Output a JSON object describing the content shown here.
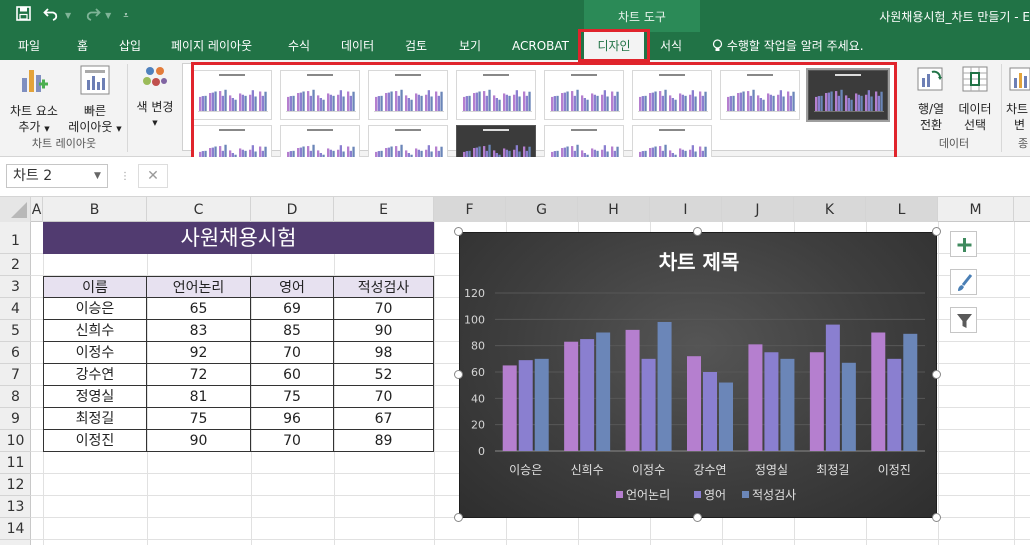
{
  "titlebar": {
    "save_icon": "save-icon",
    "undo_icon": "undo-icon",
    "redo_icon": "redo-icon",
    "customize_icon": "customize-qat-icon",
    "context_title": "차트 도구",
    "window_title": "사원채용시험_차트 만들기 - E"
  },
  "tabs": [
    {
      "label": "파일"
    },
    {
      "label": "홈"
    },
    {
      "label": "삽입"
    },
    {
      "label": "페이지 레이아웃"
    },
    {
      "label": "수식"
    },
    {
      "label": "데이터"
    },
    {
      "label": "검토"
    },
    {
      "label": "보기"
    },
    {
      "label": "ACROBAT"
    },
    {
      "label": "디자인"
    },
    {
      "label": "서식"
    }
  ],
  "tell_me": "수행할 작업을 알려 주세요.",
  "ribbon": {
    "add_element": {
      "line1": "차트 요소",
      "line2": "추가"
    },
    "quick_layout": {
      "line1": "빠른",
      "line2": "레이아웃"
    },
    "change_colors": {
      "label": "색 변경"
    },
    "layout_group": "차트 레이아웃",
    "switch_row_col": {
      "line1": "행/열",
      "line2": "전환"
    },
    "select_data": {
      "line1": "데이터",
      "line2": "선택"
    },
    "data_group": "데이터",
    "change_type": {
      "line1": "차트",
      "line2": "변"
    },
    "type_group": "종"
  },
  "namebox": {
    "value": "차트 2"
  },
  "columns": [
    {
      "label": "A"
    },
    {
      "label": "B"
    },
    {
      "label": "C"
    },
    {
      "label": "D"
    },
    {
      "label": "E"
    },
    {
      "label": "F"
    },
    {
      "label": "G"
    },
    {
      "label": "H"
    },
    {
      "label": "I"
    },
    {
      "label": "J"
    },
    {
      "label": "K"
    },
    {
      "label": "L"
    },
    {
      "label": "M"
    }
  ],
  "rows": [
    "1",
    "2",
    "3",
    "4",
    "5",
    "6",
    "7",
    "8",
    "9",
    "10",
    "11",
    "12",
    "13",
    "14"
  ],
  "sheet": {
    "title": "사원채용시험",
    "headers": [
      "이름",
      "언어논리",
      "영어",
      "적성검사"
    ],
    "records": [
      {
        "name": "이승은",
        "v1": "65",
        "v2": "69",
        "v3": "70"
      },
      {
        "name": "신희수",
        "v1": "83",
        "v2": "85",
        "v3": "90"
      },
      {
        "name": "이정수",
        "v1": "92",
        "v2": "70",
        "v3": "98"
      },
      {
        "name": "강수연",
        "v1": "72",
        "v2": "60",
        "v3": "52"
      },
      {
        "name": "정영실",
        "v1": "81",
        "v2": "75",
        "v3": "70"
      },
      {
        "name": "최정길",
        "v1": "75",
        "v2": "96",
        "v3": "67"
      },
      {
        "name": "이정진",
        "v1": "90",
        "v2": "70",
        "v3": "89"
      }
    ]
  },
  "chart_data": {
    "type": "bar",
    "title": "차트 제목",
    "categories": [
      "이승은",
      "신희수",
      "이정수",
      "강수연",
      "정영실",
      "최정길",
      "이정진"
    ],
    "series": [
      {
        "name": "언어논리",
        "values": [
          65,
          83,
          92,
          72,
          81,
          75,
          90
        ],
        "color": "#b57fcf"
      },
      {
        "name": "영어",
        "values": [
          69,
          85,
          70,
          60,
          75,
          96,
          70
        ],
        "color": "#8a7fd0"
      },
      {
        "name": "적성검사",
        "values": [
          70,
          90,
          98,
          52,
          70,
          67,
          89
        ],
        "color": "#6b86b8"
      }
    ],
    "yticks": [
      "0",
      "20",
      "40",
      "60",
      "80",
      "100",
      "120"
    ],
    "ylim": [
      0,
      120
    ],
    "grid": true,
    "legend": "bottom"
  },
  "chart_tools": {
    "add_icon": "plus-icon",
    "style_icon": "brush-icon",
    "filter_icon": "filter-icon"
  }
}
